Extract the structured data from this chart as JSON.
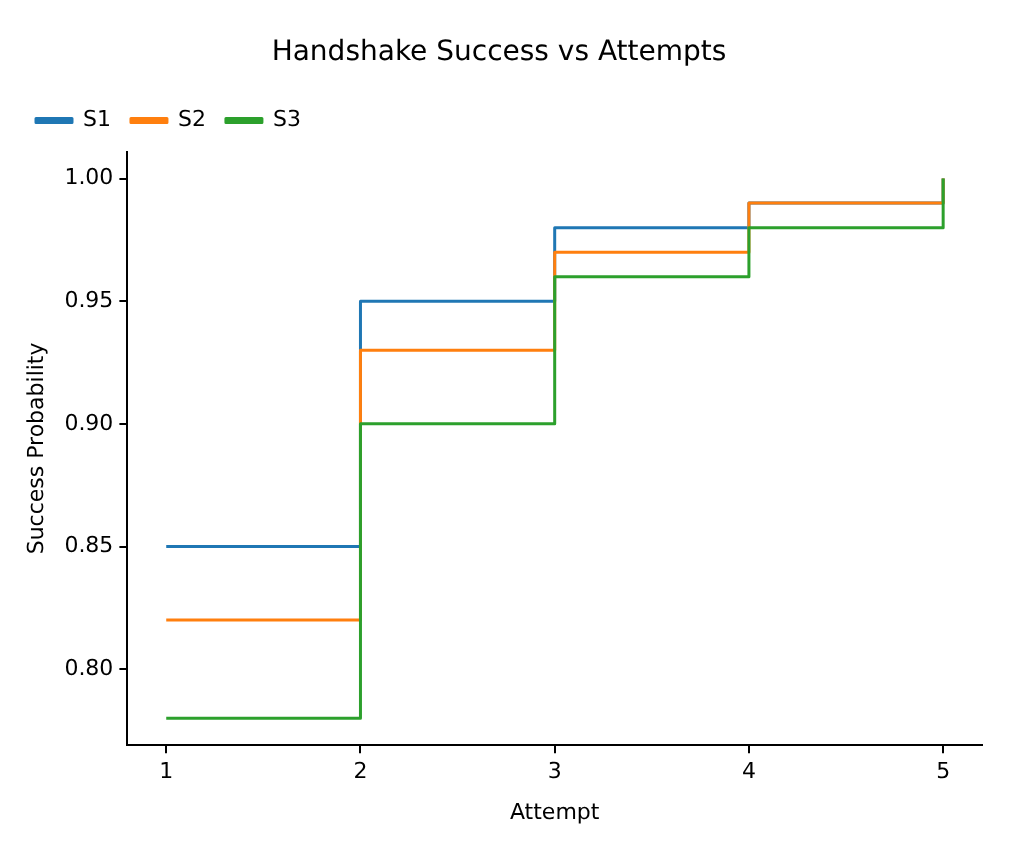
{
  "chart_data": {
    "type": "step",
    "title": "Handshake Success vs Attempts",
    "xlabel": "Attempt",
    "ylabel": "Success Probability",
    "x": [
      1,
      2,
      3,
      4,
      5
    ],
    "series": [
      {
        "name": "S1",
        "color": "#1f77b4",
        "values": [
          0.85,
          0.95,
          0.98,
          0.99,
          1.0
        ]
      },
      {
        "name": "S2",
        "color": "#ff7f0e",
        "values": [
          0.82,
          0.93,
          0.97,
          0.99,
          1.0
        ]
      },
      {
        "name": "S3",
        "color": "#2ca02c",
        "values": [
          0.78,
          0.9,
          0.96,
          0.98,
          1.0
        ]
      }
    ],
    "xlim": [
      0.8,
      5.2
    ],
    "xticks": [
      1,
      2,
      3,
      4,
      5
    ],
    "ylim": [
      0.769,
      1.011
    ],
    "yticks": [
      {
        "value": 0.8,
        "label": "0.80"
      },
      {
        "value": 0.85,
        "label": "0.85"
      },
      {
        "value": 0.9,
        "label": "0.90"
      },
      {
        "value": 0.95,
        "label": "0.95"
      },
      {
        "value": 1.0,
        "label": "1.00"
      }
    ],
    "legend": "top left",
    "grid": false
  }
}
